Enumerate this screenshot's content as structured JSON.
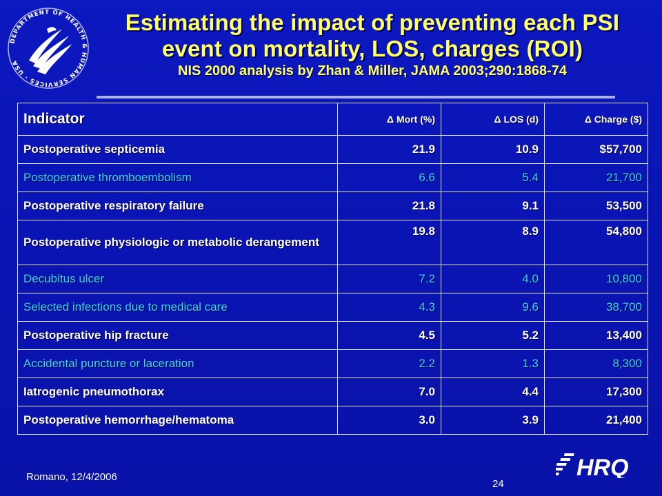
{
  "slide": {
    "title_line1": "Estimating the impact of preventing each PSI",
    "title_line2": "event on mortality, LOS, charges (ROI)",
    "subtitle": "NIS 2000 analysis by Zhan & Miller, JAMA 2003;290:1868-74",
    "footer": "Romano, 12/4/2006",
    "page_number": "24",
    "seal_text": "DEPARTMENT OF HEALTH & HUMAN SERVICES · USA",
    "logo_text": "AHRQ"
  },
  "table": {
    "headers": [
      "Indicator",
      "Δ Mort (%)",
      "Δ LOS (d)",
      "Δ Charge ($)"
    ],
    "rows": [
      {
        "indicator": "Postoperative septicemia",
        "mort": "21.9",
        "los": "10.9",
        "charge": "$57,700",
        "style": "white"
      },
      {
        "indicator": "Postoperative thromboembolism",
        "mort": "6.6",
        "los": "5.4",
        "charge": "21,700",
        "style": "cyan"
      },
      {
        "indicator": "Postoperative respiratory failure",
        "mort": "21.8",
        "los": "9.1",
        "charge": "53,500",
        "style": "white"
      },
      {
        "indicator": "Postoperative physiologic or metabolic derangement",
        "mort": "19.8",
        "los": "8.9",
        "charge": "54,800",
        "style": "white"
      },
      {
        "indicator": "Decubitus ulcer",
        "mort": "7.2",
        "los": "4.0",
        "charge": "10,800",
        "style": "cyan"
      },
      {
        "indicator": "Selected infections due to medical care",
        "mort": "4.3",
        "los": "9.6",
        "charge": "38,700",
        "style": "cyan"
      },
      {
        "indicator": "Postoperative hip fracture",
        "mort": "4.5",
        "los": "5.2",
        "charge": "13,400",
        "style": "white"
      },
      {
        "indicator": "Accidental puncture or laceration",
        "mort": "2.2",
        "los": "1.3",
        "charge": "8,300",
        "style": "cyan"
      },
      {
        "indicator": "Iatrogenic pneumothorax",
        "mort": "7.0",
        "los": "4.4",
        "charge": "17,300",
        "style": "white"
      },
      {
        "indicator": "Postoperative hemorrhage/hematoma",
        "mort": "3.0",
        "los": "3.9",
        "charge": "21,400",
        "style": "white"
      }
    ]
  },
  "colors": {
    "background": "#0a14b4",
    "title": "#ffff66",
    "highlight_text": "#33d8f5",
    "text": "#ffffff"
  }
}
